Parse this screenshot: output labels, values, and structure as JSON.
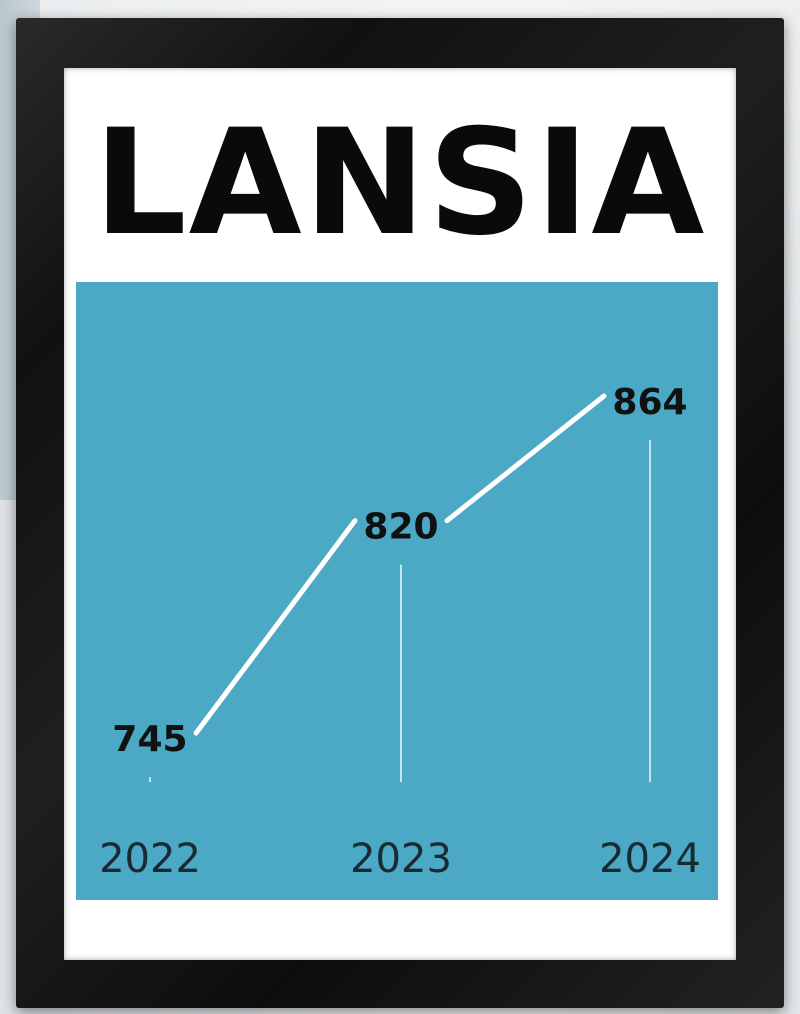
{
  "poster": {
    "title": "LANSIA"
  },
  "colors": {
    "plot_background": "#4ba9c6",
    "line": "#ffffff",
    "frame": "#141414",
    "mat": "#ffffff"
  },
  "chart_data": {
    "type": "line",
    "title": "LANSIA",
    "categories": [
      "2022",
      "2023",
      "2024"
    ],
    "series": [
      {
        "values": [
          745,
          820,
          864
        ]
      }
    ],
    "data_labels": [
      "745",
      "820",
      "864"
    ],
    "xlabel": "",
    "ylabel": "",
    "ylim": [
      600,
      900
    ],
    "grid": false,
    "legend": "none"
  }
}
